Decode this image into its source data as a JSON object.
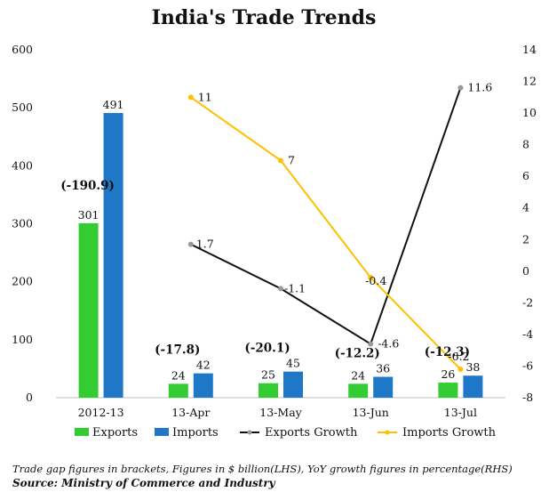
{
  "chart_data": {
    "type": "bar",
    "title": "India's Trade Trends",
    "categories": [
      "2012-13",
      "13-Apr",
      "13-May",
      "13-Jun",
      "13-Jul"
    ],
    "ylim": [
      0,
      600
    ],
    "y_ticks": [
      "0",
      "100",
      "200",
      "300",
      "400",
      "500",
      "600"
    ],
    "y2lim": [
      -8,
      14
    ],
    "y2_ticks": [
      "-8",
      "-6",
      "-4",
      "-2",
      "0",
      "2",
      "4",
      "6",
      "8",
      "10",
      "12",
      "14"
    ],
    "grid": false,
    "legend_position": "bottom",
    "bar_series": [
      {
        "name": "Exports",
        "color": "#33cc33",
        "values": [
          301,
          24,
          25,
          24,
          26
        ],
        "labels": [
          "301",
          "24",
          "25",
          "24",
          "26"
        ]
      },
      {
        "name": "Imports",
        "color": "#1f77c8",
        "values": [
          491,
          42,
          45,
          36,
          38
        ],
        "labels": [
          "491",
          "42",
          "45",
          "36",
          "38"
        ]
      }
    ],
    "line_series": [
      {
        "name": "Exports Growth",
        "color": "#111111",
        "marker_color": "#999999",
        "axis": "right",
        "x": [
          "13-Apr",
          "13-May",
          "13-Jun",
          "13-Jul"
        ],
        "values": [
          1.7,
          -1.1,
          -4.6,
          11.6
        ],
        "labels": [
          "1.7",
          "-1.1",
          "-4.6",
          "11.6"
        ]
      },
      {
        "name": "Imports Growth",
        "color": "#ffc000",
        "marker_color": "#ffc000",
        "axis": "right",
        "x": [
          "13-Apr",
          "13-May",
          "13-Jun",
          "13-Jul"
        ],
        "values": [
          11,
          7,
          -0.4,
          -6.2
        ],
        "labels": [
          "11",
          "7",
          "-0.4",
          "-6.2"
        ]
      }
    ],
    "trade_gap_labels": [
      "(-190.9)",
      "(-17.8)",
      "(-20.1)",
      "(-12.2)",
      "(-12.3)"
    ]
  },
  "footnote": "Trade gap figures in brackets, Figures in $ billion(LHS), YoY growth figures in percentage(RHS)",
  "source": "Source: Ministry of Commerce and Industry"
}
